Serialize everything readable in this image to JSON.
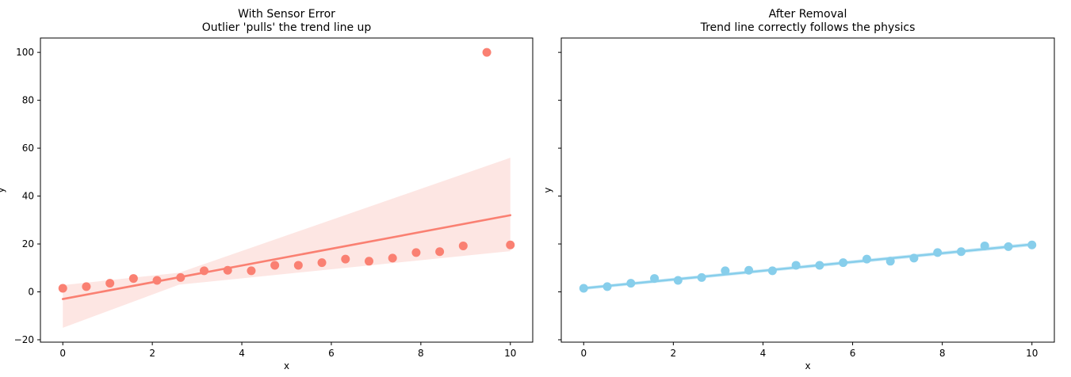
{
  "chart_data": [
    {
      "type": "scatter",
      "title": "With Sensor Error",
      "subtitle": "Outlier 'pulls' the trend line up",
      "xlabel": "x",
      "ylabel": "y",
      "xlim": [
        -0.5,
        10.5
      ],
      "ylim": [
        -21,
        106
      ],
      "xticks": [
        0,
        2,
        4,
        6,
        8,
        10
      ],
      "yticks": [
        -20,
        0,
        20,
        40,
        60,
        80,
        100
      ],
      "grid": false,
      "legend": "none",
      "color": "#fa8072",
      "band_color": "#fde6e3",
      "x": [
        0,
        0.526,
        1.053,
        1.579,
        2.105,
        2.632,
        3.158,
        3.684,
        4.211,
        4.737,
        5.263,
        5.789,
        6.316,
        6.842,
        7.368,
        7.895,
        8.421,
        8.947,
        9.474,
        10
      ],
      "y": [
        1.5,
        2.2,
        3.6,
        5.6,
        4.8,
        6.0,
        8.8,
        9.0,
        8.8,
        11.1,
        11.1,
        12.2,
        13.7,
        12.8,
        14.1,
        16.4,
        16.8,
        19.2,
        100,
        19.6
      ],
      "trend": {
        "x": [
          0,
          10
        ],
        "y": [
          -3.0,
          32.0
        ]
      },
      "ci_band": {
        "x": [
          0,
          2.6,
          10
        ],
        "lower": [
          -15,
          3,
          17
        ],
        "upper": [
          2.8,
          8,
          56
        ]
      }
    },
    {
      "type": "scatter",
      "title": "After Removal",
      "subtitle": "Trend line correctly follows the physics",
      "xlabel": "x",
      "ylabel": "y",
      "xlim": [
        -0.5,
        10.5
      ],
      "ylim": [
        -21,
        106
      ],
      "xticks": [
        0,
        2,
        4,
        6,
        8,
        10
      ],
      "yticks": [
        -20,
        0,
        20,
        40,
        60,
        80,
        100
      ],
      "shared_y": true,
      "grid": false,
      "legend": "none",
      "color": "#87ceeb",
      "band_color": "#d6eef8",
      "x": [
        0,
        0.526,
        1.053,
        1.579,
        2.105,
        2.632,
        3.158,
        3.684,
        4.211,
        4.737,
        5.263,
        5.789,
        6.316,
        6.842,
        7.368,
        7.895,
        8.421,
        8.947,
        9.474,
        10
      ],
      "y": [
        1.5,
        2.2,
        3.6,
        5.6,
        4.8,
        6.0,
        8.8,
        9.0,
        8.8,
        11.1,
        11.1,
        12.2,
        13.7,
        12.8,
        14.1,
        16.4,
        16.8,
        19.2,
        18.9,
        19.6
      ],
      "trend": {
        "x": [
          0,
          10
        ],
        "y": [
          1.5,
          19.8
        ]
      },
      "ci_band": {
        "x": [
          0,
          10
        ],
        "lower": [
          0.8,
          19.0
        ],
        "upper": [
          2.2,
          20.6
        ]
      }
    }
  ]
}
